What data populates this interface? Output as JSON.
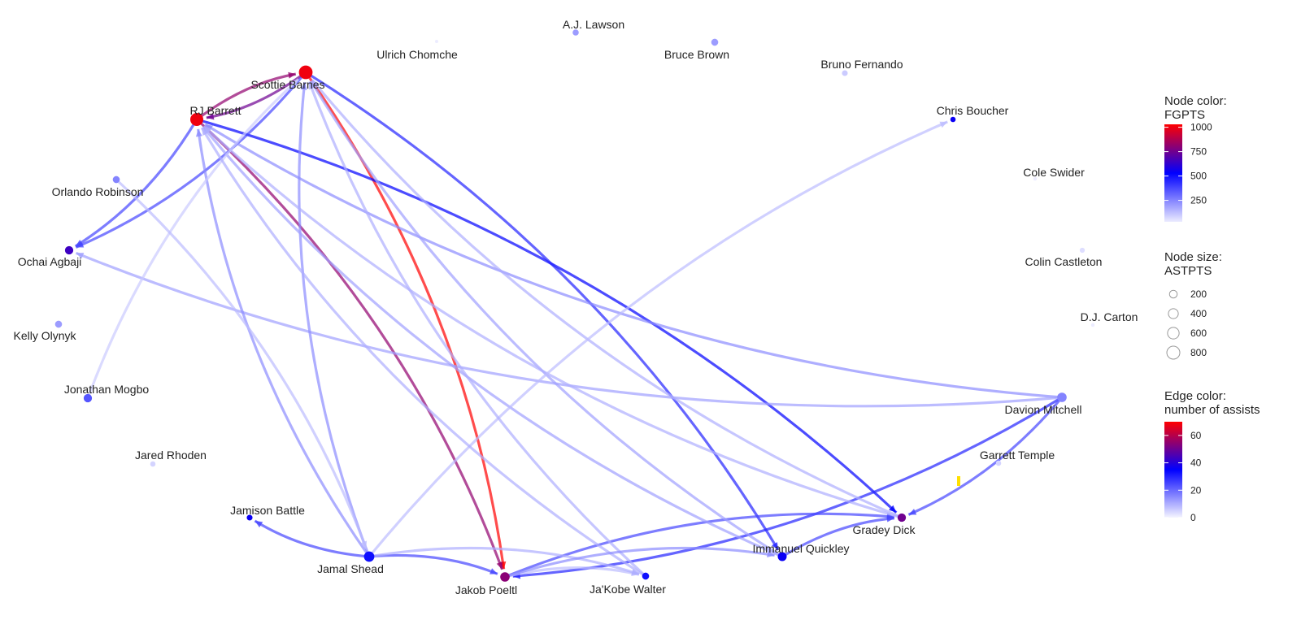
{
  "nodes": [
    {
      "label": "A.J. Lawson",
      "fgpts": 200,
      "astpts": 100
    },
    {
      "label": "Ulrich Chomche",
      "fgpts": 10,
      "astpts": 5
    },
    {
      "label": "Bruce Brown",
      "fgpts": 200,
      "astpts": 150
    },
    {
      "label": "Bruno Fernando",
      "fgpts": 100,
      "astpts": 80
    },
    {
      "label": "Scottie Barnes",
      "fgpts": 1000,
      "astpts": 900
    },
    {
      "label": "RJ Barrett",
      "fgpts": 1000,
      "astpts": 800
    },
    {
      "label": "Chris Boucher",
      "fgpts": 550,
      "astpts": 60
    },
    {
      "label": "Cole Swider",
      "fgpts": 30,
      "astpts": 10
    },
    {
      "label": "Orlando Robinson",
      "fgpts": 250,
      "astpts": 150
    },
    {
      "label": "Colin Castleton",
      "fgpts": 60,
      "astpts": 50
    },
    {
      "label": "Ochai Agbaji",
      "fgpts": 650,
      "astpts": 250
    },
    {
      "label": "Kelly Olynyk",
      "fgpts": 200,
      "astpts": 150
    },
    {
      "label": "D.J. Carton",
      "fgpts": 30,
      "astpts": 10
    },
    {
      "label": "Jonathan Mogbo",
      "fgpts": 350,
      "astpts": 250
    },
    {
      "label": "Davion Mitchell",
      "fgpts": 250,
      "astpts": 350
    },
    {
      "label": "Jared Rhoden",
      "fgpts": 80,
      "astpts": 60
    },
    {
      "label": "Garrett Temple",
      "fgpts": 80,
      "astpts": 60
    },
    {
      "label": "Jamison Battle",
      "fgpts": 550,
      "astpts": 80
    },
    {
      "label": "Gradey Dick",
      "fgpts": 750,
      "astpts": 250
    },
    {
      "label": "Jamal Shead",
      "fgpts": 500,
      "astpts": 450
    },
    {
      "label": "Immanuel Quickley",
      "fgpts": 550,
      "astpts": 300
    },
    {
      "label": "Jakob Poeltl",
      "fgpts": 800,
      "astpts": 350
    },
    {
      "label": "Ja'Kobe Walter",
      "fgpts": 500,
      "astpts": 150
    }
  ],
  "edges": [
    {
      "from": 4,
      "to": 21,
      "assists": 70
    },
    {
      "from": 5,
      "to": 21,
      "assists": 55
    },
    {
      "from": 5,
      "to": 4,
      "assists": 55
    },
    {
      "from": 4,
      "to": 5,
      "assists": 50
    },
    {
      "from": 5,
      "to": 18,
      "assists": 35
    },
    {
      "from": 4,
      "to": 20,
      "assists": 30
    },
    {
      "from": 14,
      "to": 21,
      "assists": 30
    },
    {
      "from": 19,
      "to": 17,
      "assists": 25
    },
    {
      "from": 19,
      "to": 21,
      "assists": 25
    },
    {
      "from": 21,
      "to": 18,
      "assists": 25
    },
    {
      "from": 14,
      "to": 18,
      "assists": 25
    },
    {
      "from": 5,
      "to": 10,
      "assists": 25
    },
    {
      "from": 4,
      "to": 10,
      "assists": 25
    },
    {
      "from": 20,
      "to": 18,
      "assists": 25
    },
    {
      "from": 14,
      "to": 5,
      "assists": 15
    },
    {
      "from": 14,
      "to": 10,
      "assists": 12
    },
    {
      "from": 19,
      "to": 5,
      "assists": 15
    },
    {
      "from": 19,
      "to": 4,
      "assists": 15
    },
    {
      "from": 20,
      "to": 5,
      "assists": 12
    },
    {
      "from": 20,
      "to": 4,
      "assists": 12
    },
    {
      "from": 18,
      "to": 4,
      "assists": 10
    },
    {
      "from": 18,
      "to": 5,
      "assists": 10
    },
    {
      "from": 21,
      "to": 22,
      "assists": 8
    },
    {
      "from": 19,
      "to": 22,
      "assists": 10
    },
    {
      "from": 19,
      "to": 6,
      "assists": 8
    },
    {
      "from": 13,
      "to": 4,
      "assists": 6
    },
    {
      "from": 8,
      "to": 19,
      "assists": 8
    },
    {
      "from": 22,
      "to": 5,
      "assists": 10
    },
    {
      "from": 22,
      "to": 4,
      "assists": 10
    },
    {
      "from": 21,
      "to": 20,
      "assists": 15
    }
  ],
  "legend": {
    "node_color": {
      "title_lines": [
        "Node color:",
        "FGPTS"
      ],
      "lim": [
        30,
        1030
      ],
      "ticks": [
        250,
        500,
        750,
        1000
      ],
      "colors": [
        "#ececff",
        "#0000ff",
        "#ff0000"
      ]
    },
    "node_size": {
      "title_lines": [
        "Node size:",
        "ASTPTS"
      ],
      "ticks": [
        200,
        400,
        600,
        800
      ]
    },
    "edge_color": {
      "title_lines": [
        "Edge color:",
        "number of assists"
      ],
      "lim": [
        0,
        70
      ],
      "ticks": [
        0,
        20,
        40,
        60
      ],
      "colors": [
        "#f4f4ff",
        "#0000ff",
        "#ff0000"
      ]
    }
  }
}
